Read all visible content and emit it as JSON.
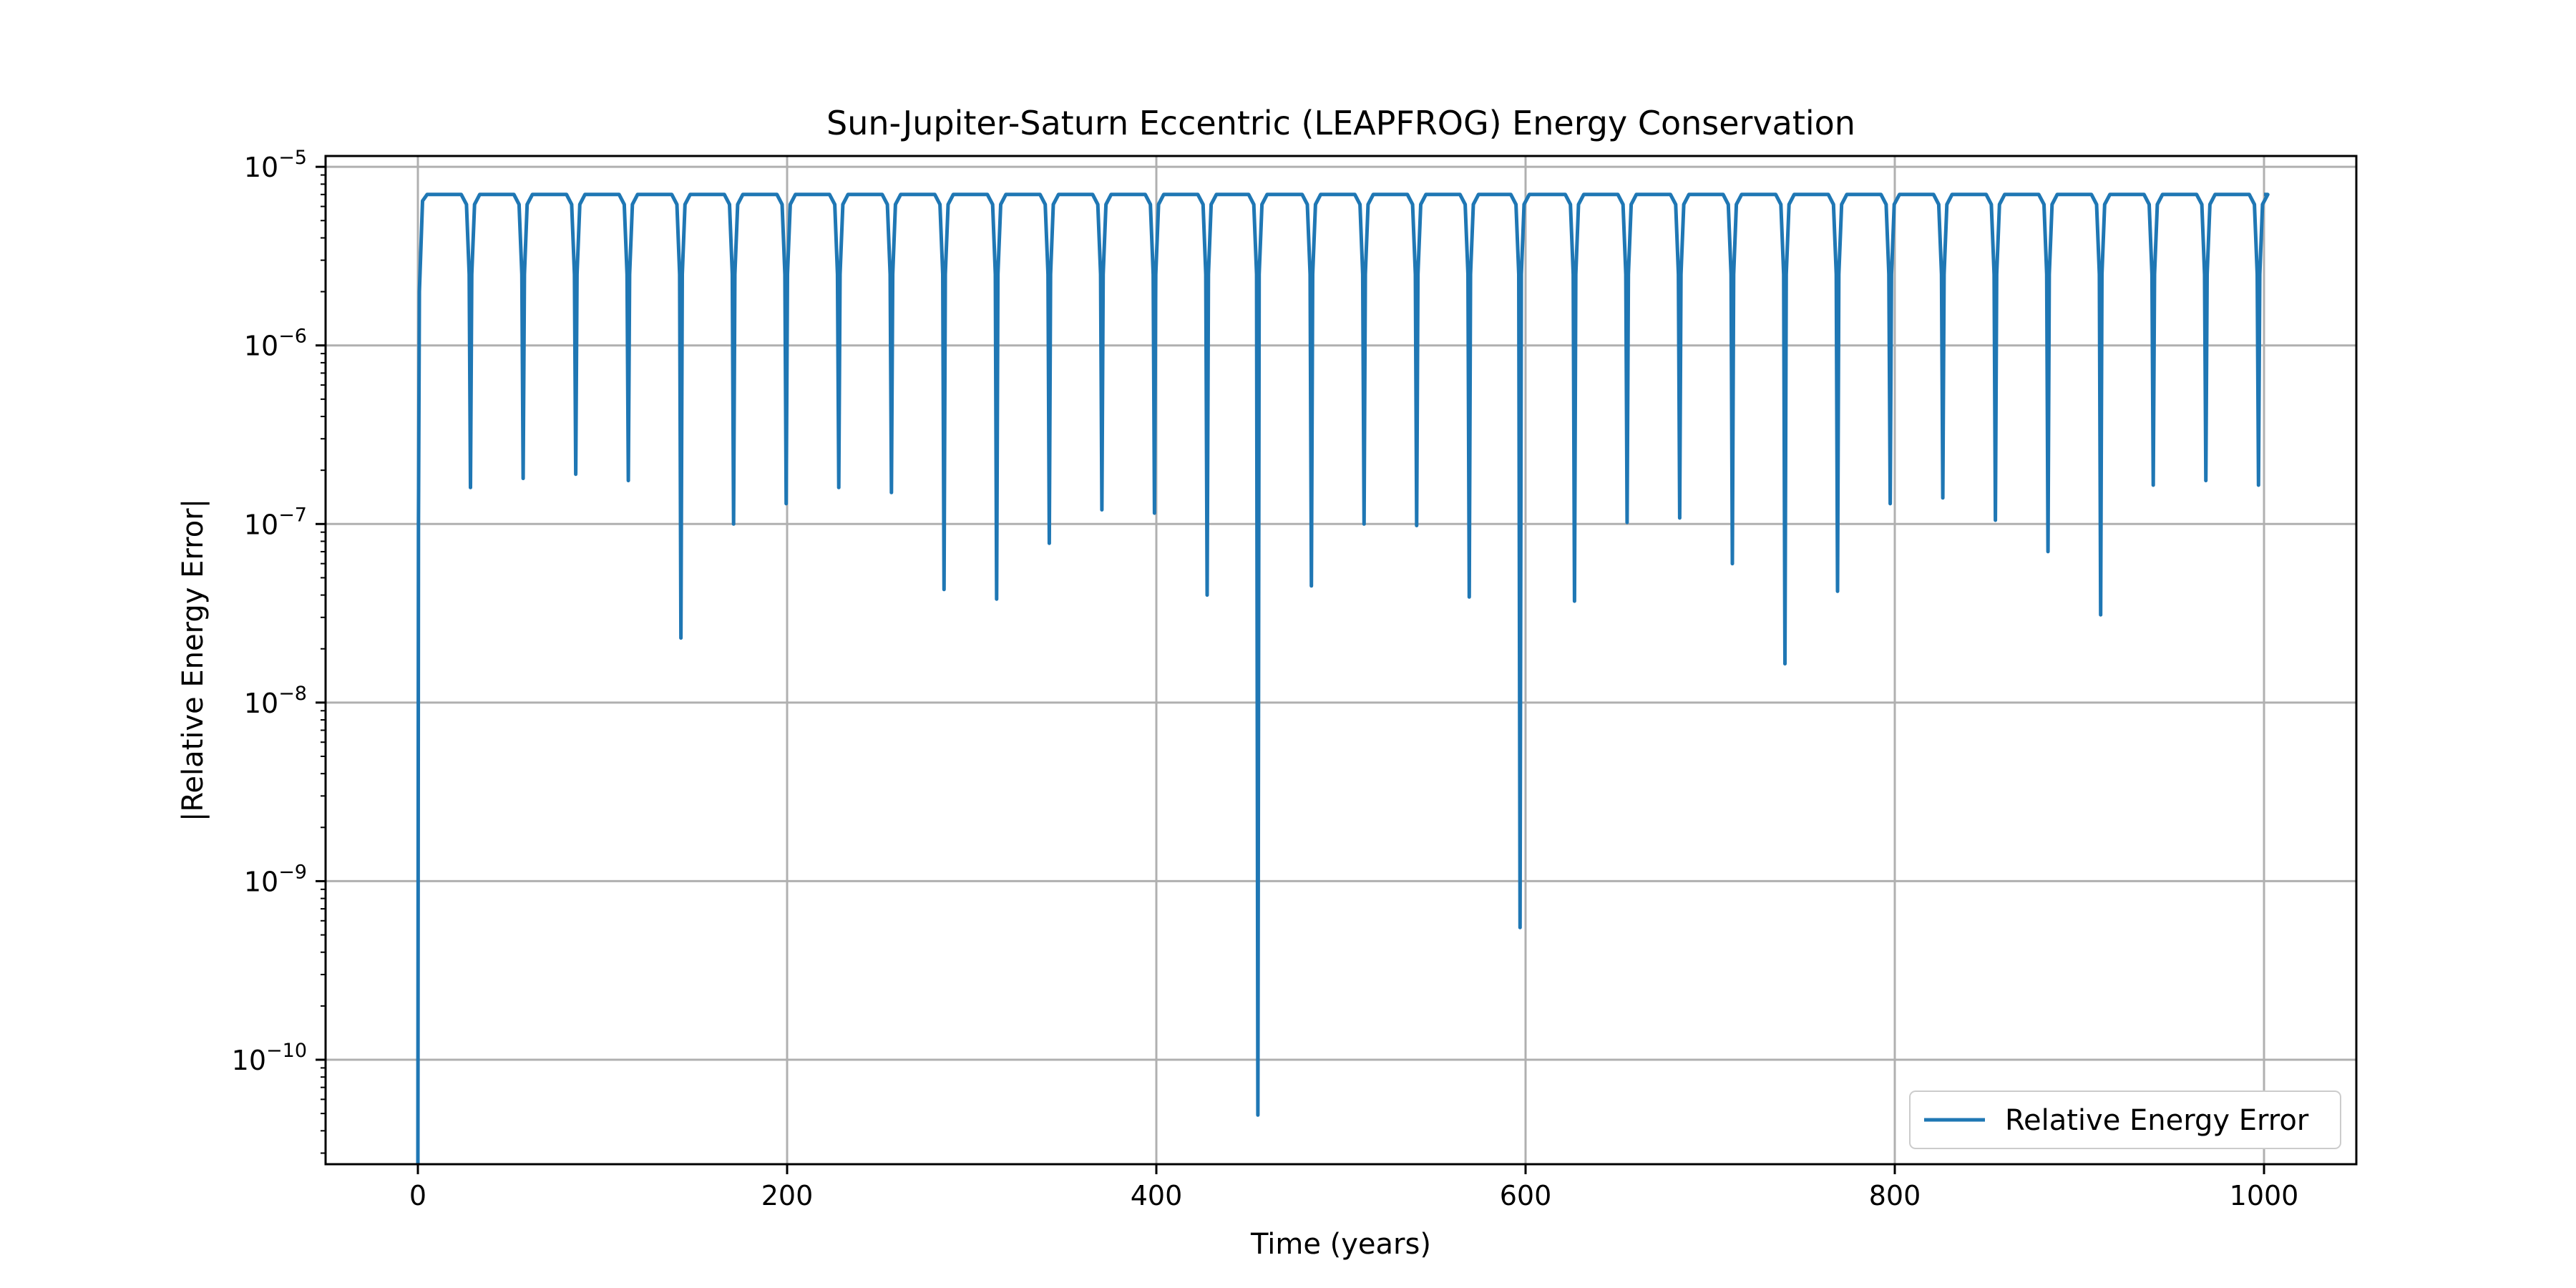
{
  "chart_data": {
    "type": "line",
    "title": "Sun-Jupiter-Saturn Eccentric (LEAPFROG) Energy Conservation",
    "xlabel": "Time (years)",
    "ylabel": "|Relative Energy Error|",
    "xlim": [
      -50,
      1050
    ],
    "ylim": [
      2.6e-11,
      1.15e-05
    ],
    "yscale": "log",
    "grid": true,
    "legend_position": "lower-right",
    "x_ticks": [
      {
        "value": 0,
        "label": "0"
      },
      {
        "value": 200,
        "label": "200"
      },
      {
        "value": 400,
        "label": "400"
      },
      {
        "value": 600,
        "label": "600"
      },
      {
        "value": 800,
        "label": "800"
      },
      {
        "value": 1000,
        "label": "1000"
      }
    ],
    "y_ticks": [
      {
        "value": 1e-05,
        "base": "10",
        "exp": "−5"
      },
      {
        "value": 1e-06,
        "base": "10",
        "exp": "−6"
      },
      {
        "value": 1e-07,
        "base": "10",
        "exp": "−7"
      },
      {
        "value": 1e-08,
        "base": "10",
        "exp": "−8"
      },
      {
        "value": 1e-09,
        "base": "10",
        "exp": "−9"
      },
      {
        "value": 1e-10,
        "base": "10",
        "exp": "−10"
      }
    ],
    "series": [
      {
        "name": "Relative Energy Error",
        "color": "#1f77b4",
        "plateau": 7e-06,
        "start": {
          "x": 0,
          "y": 2.6e-11
        },
        "end": {
          "x": 1000,
          "y": 7e-06
        },
        "dips": [
          {
            "x": 28.5,
            "y": 1.6e-07
          },
          {
            "x": 57,
            "y": 1.8e-07
          },
          {
            "x": 85.5,
            "y": 1.9e-07
          },
          {
            "x": 114,
            "y": 1.75e-07
          },
          {
            "x": 142.5,
            "y": 2.3e-08
          },
          {
            "x": 171,
            "y": 1e-07
          },
          {
            "x": 199.5,
            "y": 1.3e-07
          },
          {
            "x": 228,
            "y": 1.6e-07
          },
          {
            "x": 256.5,
            "y": 1.5e-07
          },
          {
            "x": 285,
            "y": 4.3e-08
          },
          {
            "x": 313.5,
            "y": 3.8e-08
          },
          {
            "x": 342,
            "y": 7.8e-08
          },
          {
            "x": 370.5,
            "y": 1.2e-07
          },
          {
            "x": 399,
            "y": 1.15e-07
          },
          {
            "x": 427.5,
            "y": 4e-08
          },
          {
            "x": 455,
            "y": 4.9e-11
          },
          {
            "x": 484,
            "y": 4.5e-08
          },
          {
            "x": 512.5,
            "y": 1e-07
          },
          {
            "x": 541,
            "y": 9.8e-08
          },
          {
            "x": 569.5,
            "y": 3.9e-08
          },
          {
            "x": 597,
            "y": 5.5e-10
          },
          {
            "x": 626.5,
            "y": 3.7e-08
          },
          {
            "x": 655,
            "y": 1.02e-07
          },
          {
            "x": 683.5,
            "y": 1.08e-07
          },
          {
            "x": 712,
            "y": 6e-08
          },
          {
            "x": 740.5,
            "y": 1.65e-08
          },
          {
            "x": 769,
            "y": 4.2e-08
          },
          {
            "x": 797.5,
            "y": 1.3e-07
          },
          {
            "x": 826,
            "y": 1.4e-07
          },
          {
            "x": 854.5,
            "y": 1.05e-07
          },
          {
            "x": 883,
            "y": 7e-08
          },
          {
            "x": 911.5,
            "y": 3.1e-08
          },
          {
            "x": 940,
            "y": 1.65e-07
          },
          {
            "x": 968.5,
            "y": 1.75e-07
          },
          {
            "x": 997,
            "y": 1.65e-07
          }
        ]
      }
    ]
  }
}
